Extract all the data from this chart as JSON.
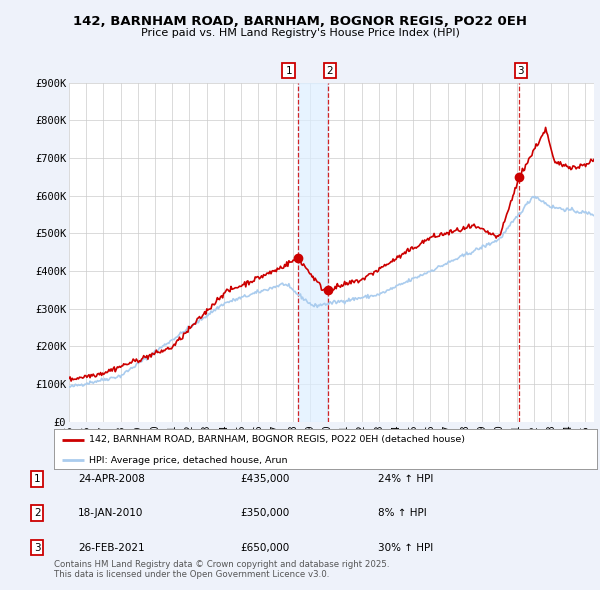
{
  "title": "142, BARNHAM ROAD, BARNHAM, BOGNOR REGIS, PO22 0EH",
  "subtitle": "Price paid vs. HM Land Registry's House Price Index (HPI)",
  "bg_color": "#eef2fa",
  "plot_bg_color": "#ffffff",
  "grid_color": "#cccccc",
  "red_color": "#cc0000",
  "blue_color": "#aaccee",
  "ylim": [
    0,
    900000
  ],
  "yticks": [
    0,
    100000,
    200000,
    300000,
    400000,
    500000,
    600000,
    700000,
    800000,
    900000
  ],
  "ytick_labels": [
    "£0",
    "£100K",
    "£200K",
    "£300K",
    "£400K",
    "£500K",
    "£600K",
    "£700K",
    "£800K",
    "£900K"
  ],
  "xmin": 1995,
  "xmax": 2025.5,
  "vline1_x": 2008.31,
  "vline2_x": 2010.05,
  "vline3_x": 2021.15,
  "shade_x1": 2008.31,
  "shade_x2": 2010.05,
  "transactions": [
    {
      "label": "1",
      "date": 2008.31,
      "price": 435000
    },
    {
      "label": "2",
      "date": 2010.05,
      "price": 350000
    },
    {
      "label": "3",
      "date": 2021.15,
      "price": 650000
    }
  ],
  "legend_items": [
    {
      "label": "142, BARNHAM ROAD, BARNHAM, BOGNOR REGIS, PO22 0EH (detached house)",
      "color": "#cc0000"
    },
    {
      "label": "HPI: Average price, detached house, Arun",
      "color": "#aaccee"
    }
  ],
  "table_rows": [
    {
      "num": "1",
      "date": "24-APR-2008",
      "price": "£435,000",
      "pct": "24% ↑ HPI"
    },
    {
      "num": "2",
      "date": "18-JAN-2010",
      "price": "£350,000",
      "pct": "8% ↑ HPI"
    },
    {
      "num": "3",
      "date": "26-FEB-2021",
      "price": "£650,000",
      "pct": "30% ↑ HPI"
    }
  ],
  "footnote": "Contains HM Land Registry data © Crown copyright and database right 2025.\nThis data is licensed under the Open Government Licence v3.0."
}
